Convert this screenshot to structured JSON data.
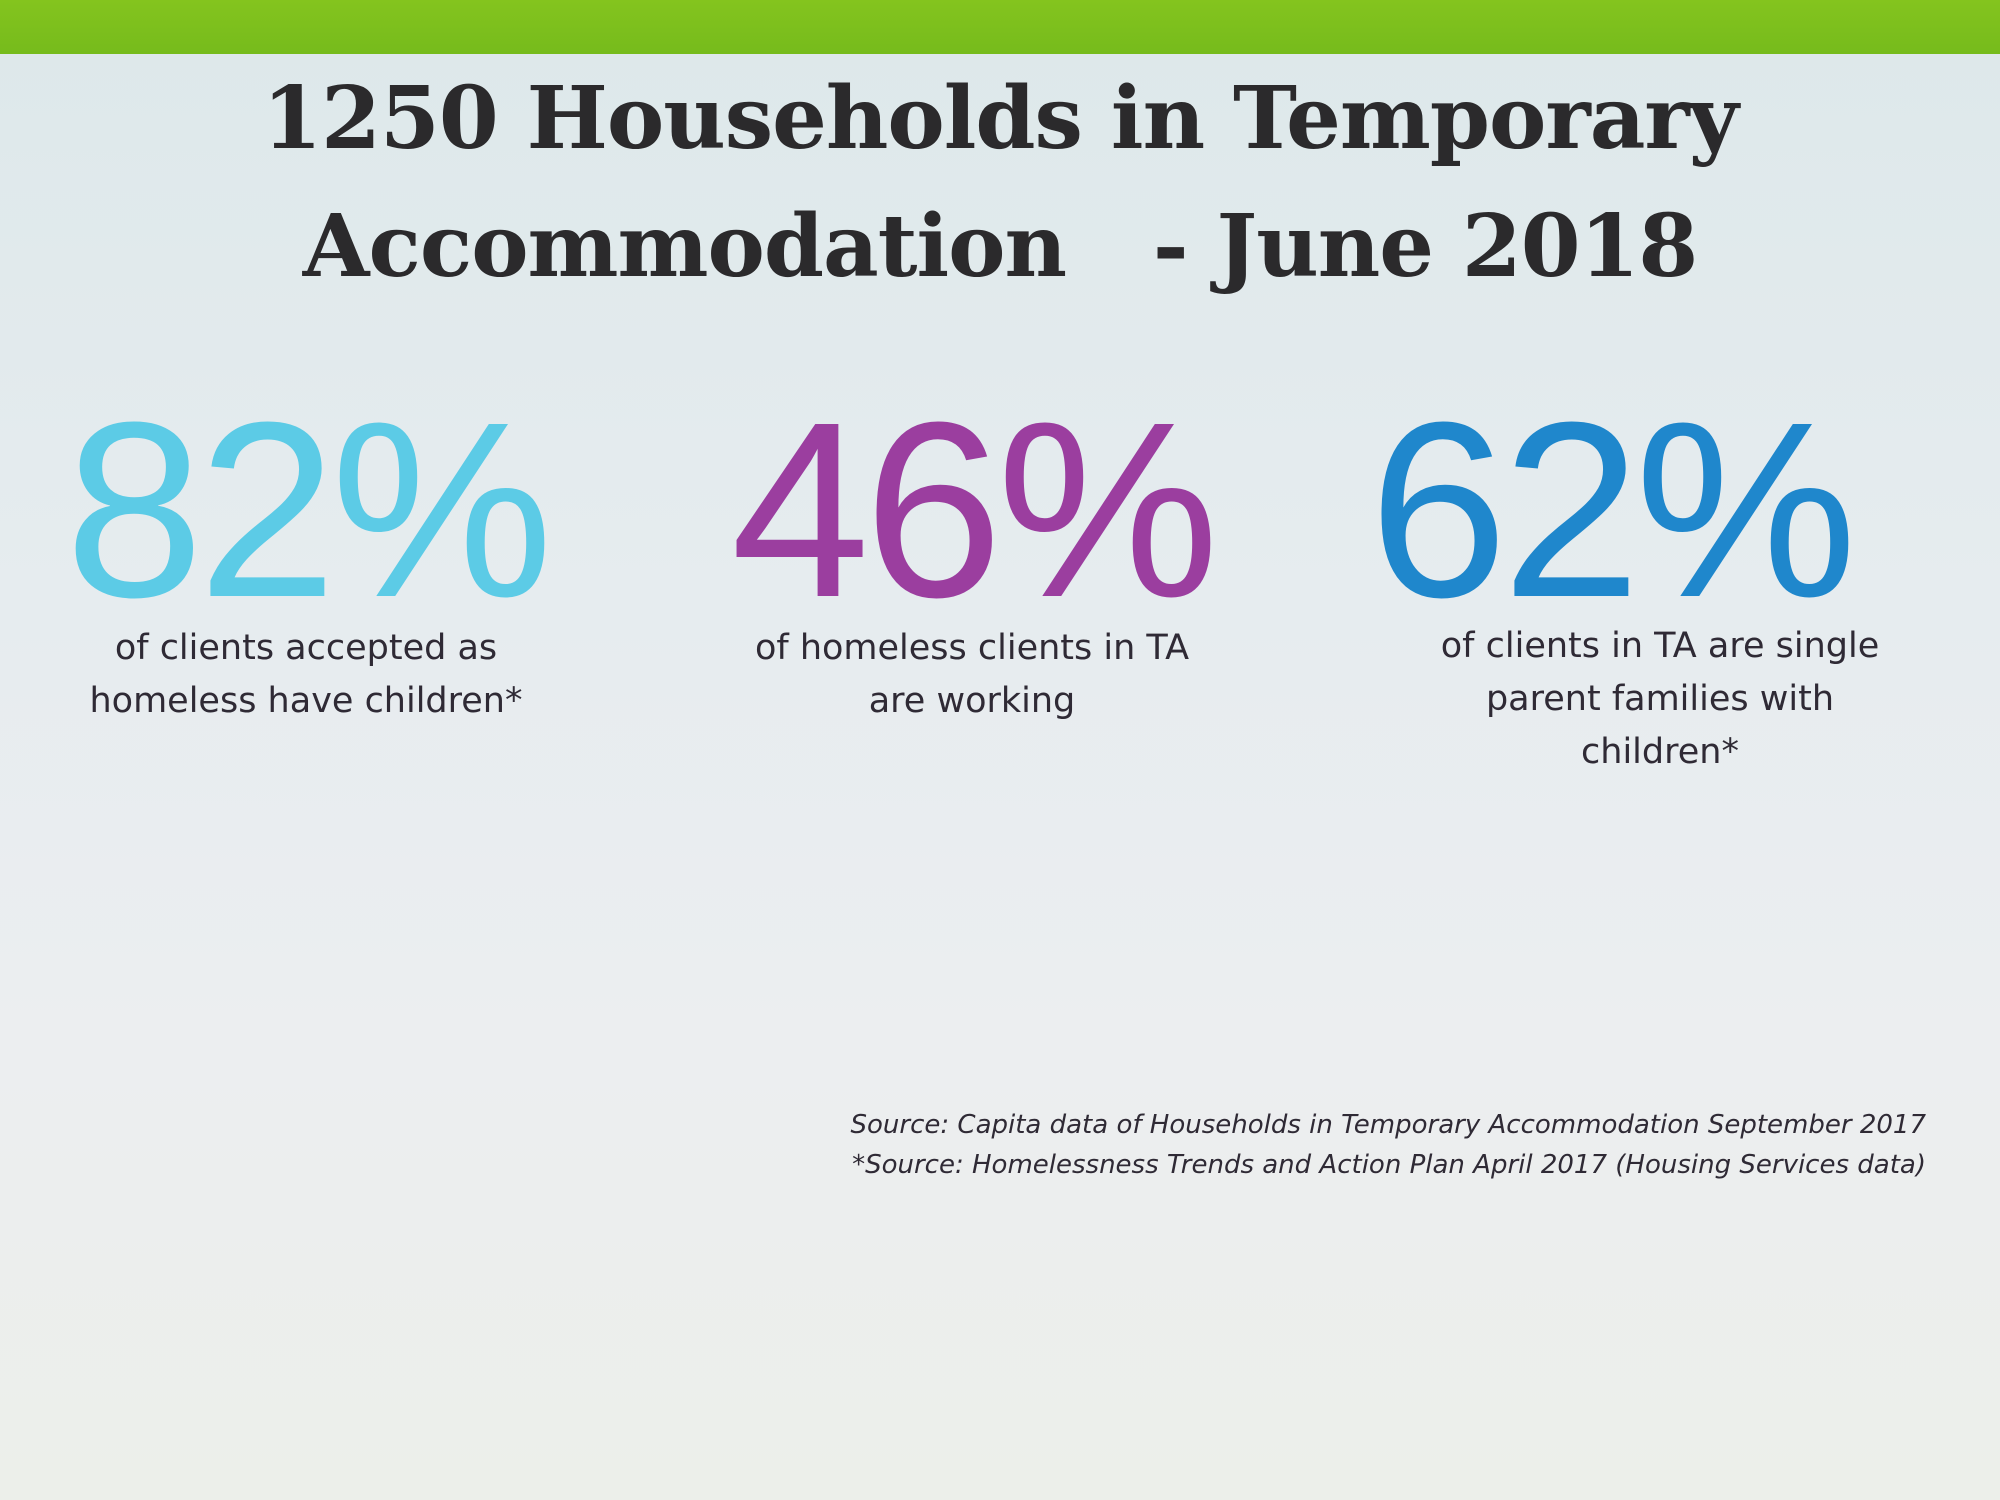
{
  "header": {
    "title_lines": [
      "1250 Households in Temporary",
      "Accommodation   - June 2018"
    ]
  },
  "stats": [
    {
      "figure": "82%",
      "description_lines": [
        "of clients accepted as",
        "homeless have children*"
      ]
    },
    {
      "figure": "46%",
      "description_lines": [
        "of homeless clients in TA",
        "are working"
      ]
    },
    {
      "figure": "62%",
      "description_lines": [
        "of clients in TA are single",
        "parent families with",
        "children*"
      ]
    }
  ],
  "footer": {
    "sources": [
      "Source: Capita data of Households in Temporary Accommodation September 2017",
      "*Source: Homelessness Trends and Action Plan April 2017 (Housing Services data)"
    ]
  }
}
